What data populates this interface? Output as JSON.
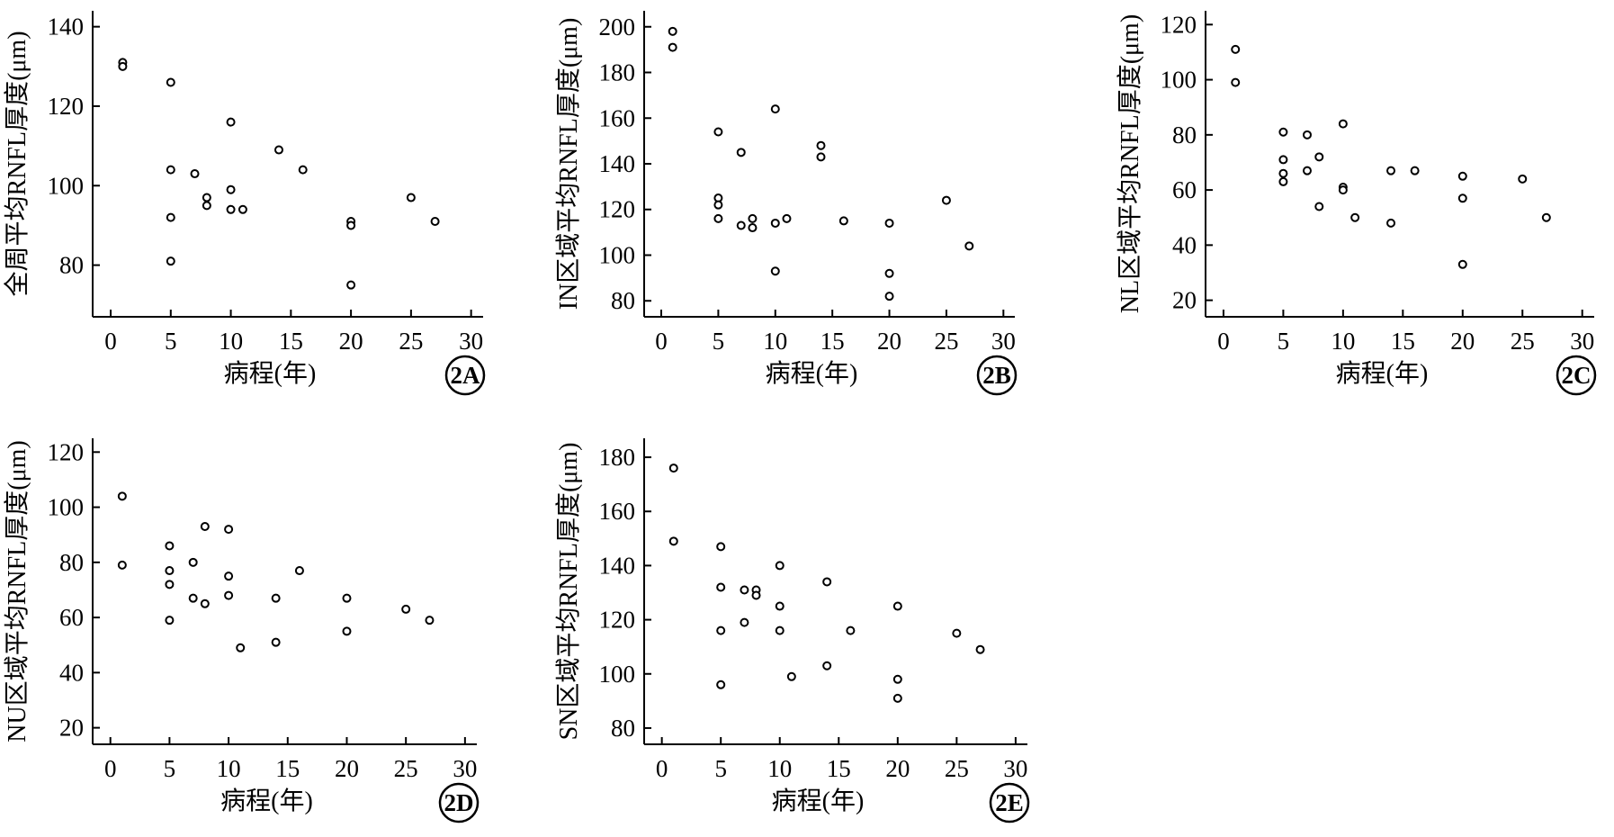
{
  "chart_data": [
    {
      "type": "scatter",
      "panel_label": "2A",
      "xlabel": "病程(年)",
      "ylabel": "全周平均RNFL厚度(μm)",
      "xlim": [
        -1.5,
        31
      ],
      "ylim": [
        67,
        144
      ],
      "xticks": [
        0,
        5,
        10,
        15,
        20,
        25,
        30
      ],
      "yticks": [
        80,
        100,
        120,
        140
      ],
      "points": [
        [
          1,
          131
        ],
        [
          1,
          130
        ],
        [
          5,
          126
        ],
        [
          5,
          104
        ],
        [
          5,
          92
        ],
        [
          5,
          81
        ],
        [
          7,
          103
        ],
        [
          8,
          97
        ],
        [
          8,
          95
        ],
        [
          10,
          116
        ],
        [
          10,
          99
        ],
        [
          10,
          94
        ],
        [
          11,
          94
        ],
        [
          14,
          109
        ],
        [
          16,
          104
        ],
        [
          20,
          91
        ],
        [
          20,
          90
        ],
        [
          20,
          75
        ],
        [
          25,
          97
        ],
        [
          27,
          91
        ]
      ]
    },
    {
      "type": "scatter",
      "panel_label": "2B",
      "xlabel": "病程(年)",
      "ylabel": "IN区域平均RNFL厚度(μm)",
      "xlim": [
        -1.5,
        31
      ],
      "ylim": [
        73,
        207
      ],
      "xticks": [
        0,
        5,
        10,
        15,
        20,
        25,
        30
      ],
      "yticks": [
        80,
        100,
        120,
        140,
        160,
        180,
        200
      ],
      "points": [
        [
          1,
          198
        ],
        [
          1,
          191
        ],
        [
          5,
          154
        ],
        [
          5,
          125
        ],
        [
          5,
          122
        ],
        [
          5,
          116
        ],
        [
          7,
          145
        ],
        [
          7,
          113
        ],
        [
          8,
          116
        ],
        [
          8,
          112
        ],
        [
          10,
          164
        ],
        [
          10,
          114
        ],
        [
          10,
          93
        ],
        [
          11,
          116
        ],
        [
          14,
          148
        ],
        [
          14,
          143
        ],
        [
          16,
          115
        ],
        [
          20,
          114
        ],
        [
          20,
          92
        ],
        [
          20,
          82
        ],
        [
          25,
          124
        ],
        [
          27,
          104
        ]
      ]
    },
    {
      "type": "scatter",
      "panel_label": "2C",
      "xlabel": "病程(年)",
      "ylabel": "NL区域平均RNFL厚度(μm)",
      "xlim": [
        -1.5,
        31
      ],
      "ylim": [
        14,
        125
      ],
      "xticks": [
        0,
        5,
        10,
        15,
        20,
        25,
        30
      ],
      "yticks": [
        20,
        40,
        60,
        80,
        100,
        120
      ],
      "points": [
        [
          1,
          111
        ],
        [
          1,
          99
        ],
        [
          5,
          81
        ],
        [
          5,
          71
        ],
        [
          5,
          66
        ],
        [
          5,
          63
        ],
        [
          7,
          80
        ],
        [
          7,
          67
        ],
        [
          8,
          72
        ],
        [
          8,
          54
        ],
        [
          10,
          84
        ],
        [
          10,
          61
        ],
        [
          10,
          60
        ],
        [
          11,
          50
        ],
        [
          14,
          67
        ],
        [
          14,
          48
        ],
        [
          16,
          67
        ],
        [
          20,
          65
        ],
        [
          20,
          57
        ],
        [
          20,
          33
        ],
        [
          25,
          64
        ],
        [
          27,
          50
        ]
      ]
    },
    {
      "type": "scatter",
      "panel_label": "2D",
      "xlabel": "病程(年)",
      "ylabel": "NU区域平均RNFL厚度(μm)",
      "xlim": [
        -1.5,
        31
      ],
      "ylim": [
        14,
        125
      ],
      "xticks": [
        0,
        5,
        10,
        15,
        20,
        25,
        30
      ],
      "yticks": [
        20,
        40,
        60,
        80,
        100,
        120
      ],
      "points": [
        [
          1,
          104
        ],
        [
          1,
          79
        ],
        [
          5,
          86
        ],
        [
          5,
          77
        ],
        [
          5,
          72
        ],
        [
          5,
          59
        ],
        [
          7,
          80
        ],
        [
          7,
          67
        ],
        [
          8,
          93
        ],
        [
          8,
          65
        ],
        [
          10,
          92
        ],
        [
          10,
          75
        ],
        [
          10,
          68
        ],
        [
          11,
          49
        ],
        [
          14,
          67
        ],
        [
          14,
          51
        ],
        [
          16,
          77
        ],
        [
          20,
          67
        ],
        [
          20,
          55
        ],
        [
          25,
          63
        ],
        [
          27,
          59
        ]
      ]
    },
    {
      "type": "scatter",
      "panel_label": "2E",
      "xlabel": "病程(年)",
      "ylabel": "SN区域平均RNFL厚度(μm)",
      "xlim": [
        -1.5,
        31
      ],
      "ylim": [
        74,
        187
      ],
      "xticks": [
        0,
        5,
        10,
        15,
        20,
        25,
        30
      ],
      "yticks": [
        80,
        100,
        120,
        140,
        160,
        180
      ],
      "points": [
        [
          1,
          176
        ],
        [
          1,
          149
        ],
        [
          5,
          147
        ],
        [
          5,
          132
        ],
        [
          5,
          116
        ],
        [
          5,
          96
        ],
        [
          7,
          131
        ],
        [
          7,
          119
        ],
        [
          8,
          131
        ],
        [
          8,
          129
        ],
        [
          10,
          140
        ],
        [
          10,
          125
        ],
        [
          10,
          116
        ],
        [
          11,
          99
        ],
        [
          14,
          134
        ],
        [
          14,
          103
        ],
        [
          16,
          116
        ],
        [
          20,
          125
        ],
        [
          20,
          98
        ],
        [
          20,
          91
        ],
        [
          25,
          115
        ],
        [
          27,
          109
        ]
      ]
    }
  ]
}
